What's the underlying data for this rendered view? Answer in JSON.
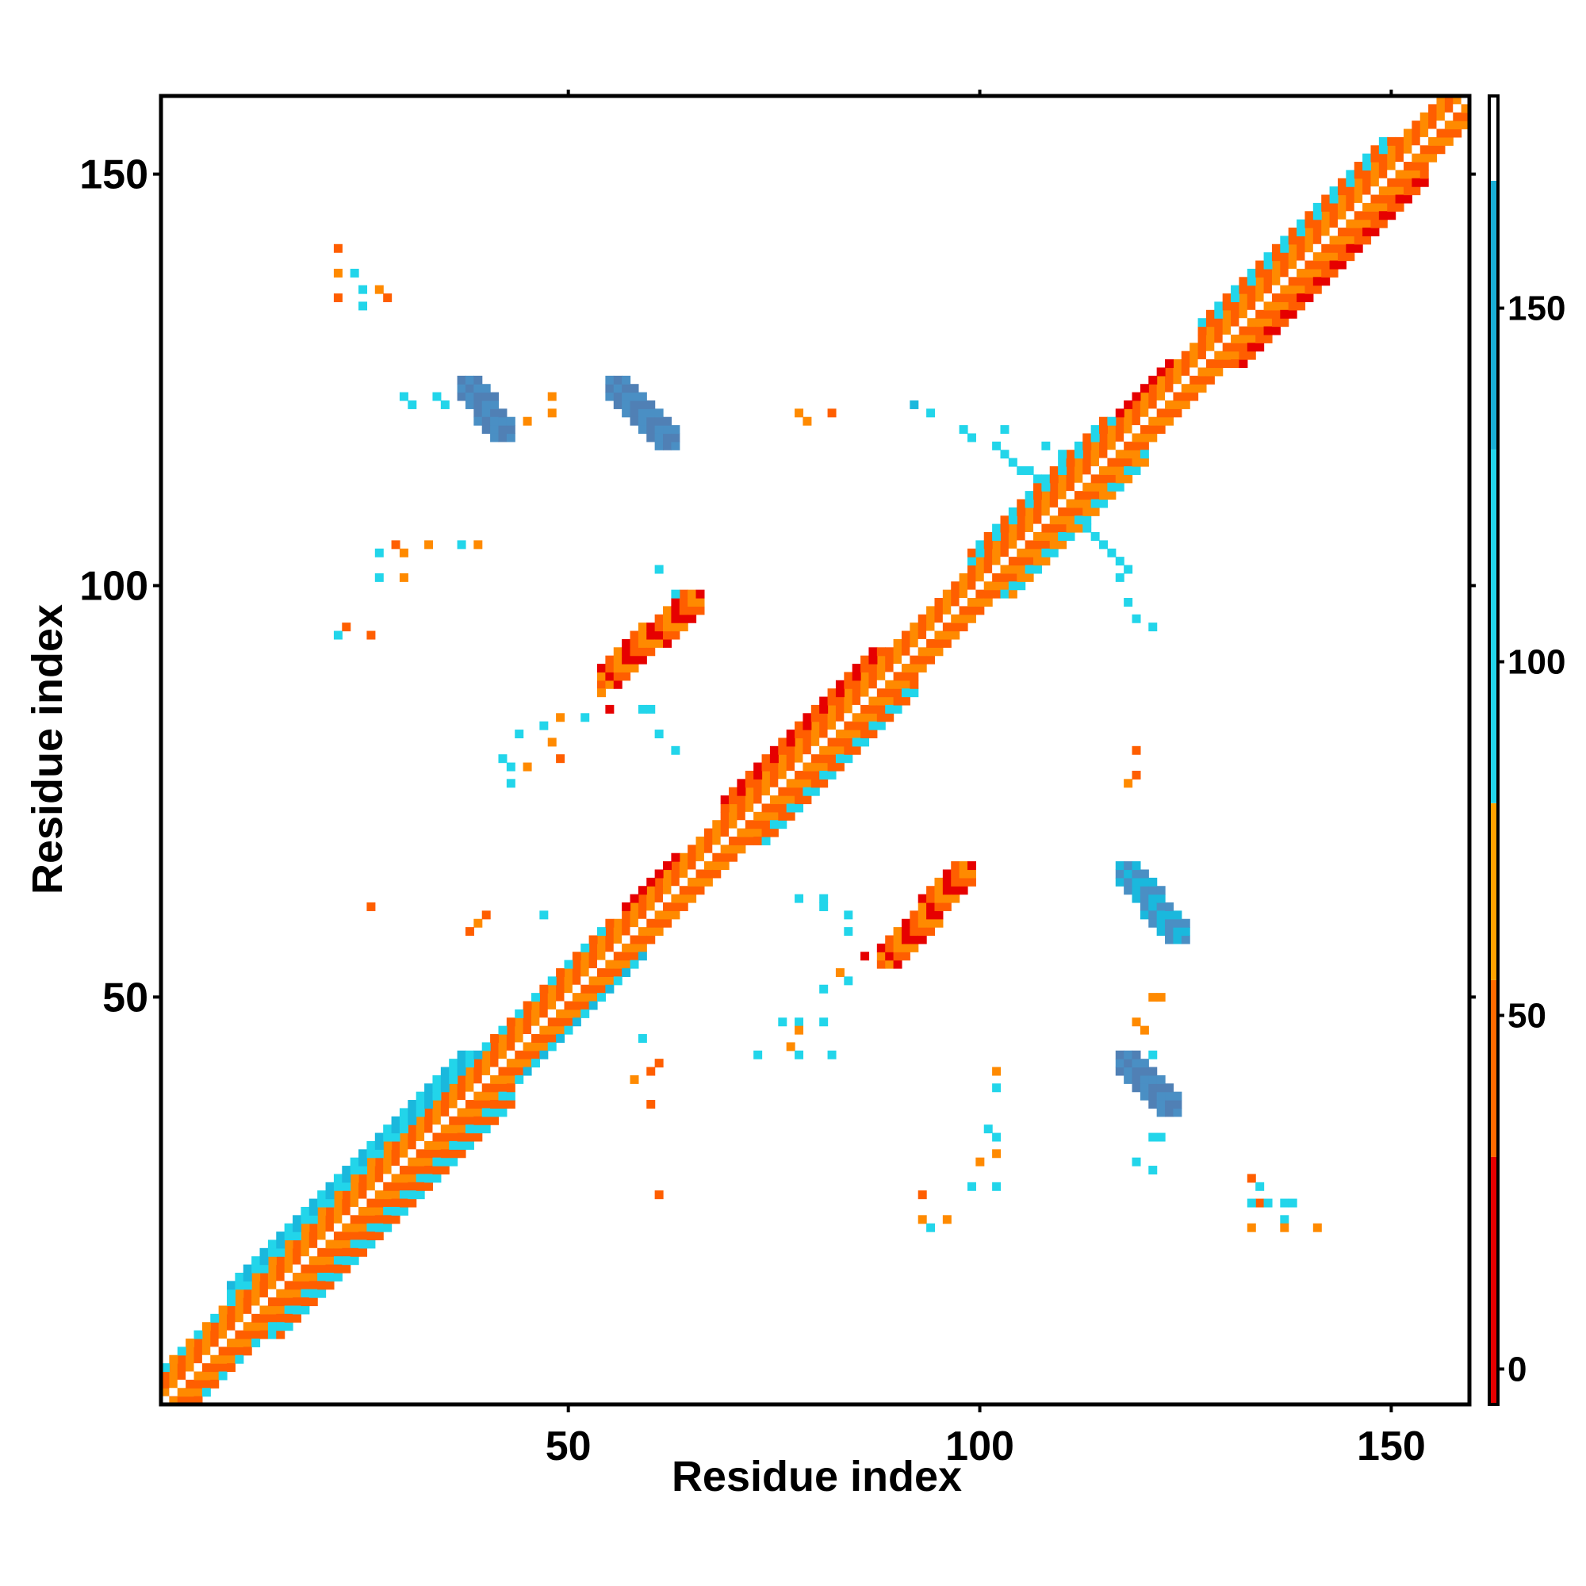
{
  "chart_data": {
    "type": "heatmap",
    "title": "",
    "xlabel": "Residue index",
    "ylabel": "Residue index",
    "xlim": [
      1,
      159
    ],
    "ylim": [
      1,
      159
    ],
    "x_ticks": [
      "50",
      "100",
      "150"
    ],
    "y_ticks": [
      "50",
      "100",
      "150"
    ],
    "grid": false,
    "colorbar": {
      "range": [
        -5,
        180
      ],
      "ticks": [
        "0",
        "50",
        "100",
        "150"
      ],
      "bands": [
        {
          "from": -5,
          "to": 30,
          "color": "#e60000"
        },
        {
          "from": 30,
          "to": 55,
          "color": "#ff6a00"
        },
        {
          "from": 55,
          "to": 80,
          "color": "#ffa200"
        },
        {
          "from": 80,
          "to": 130,
          "color": "#22d5ea"
        },
        {
          "from": 130,
          "to": 168,
          "color": "#1aaed6"
        },
        {
          "from": 168,
          "to": 180,
          "color": "#ffffff"
        }
      ],
      "palette": [
        "#e60000",
        "#ff5e00",
        "#ff8a00",
        "#ffa200",
        "#22d5ea",
        "#1ab8dd",
        "#4a8fc4",
        "#5080b5"
      ]
    },
    "diagonal": {
      "from": 1,
      "to": 159
    },
    "segments": [
      {
        "x1": 1,
        "y1": 1,
        "x2": 159,
        "y2": 159,
        "w": 2,
        "c": [
          2,
          1
        ]
      },
      {
        "x1": 1,
        "y1": 3,
        "x2": 30,
        "y2": 32,
        "w": 1,
        "c": [
          4,
          2
        ]
      },
      {
        "x1": 3,
        "y1": 1,
        "x2": 32,
        "y2": 30,
        "w": 1,
        "c": [
          1,
          4
        ]
      },
      {
        "x1": 10,
        "y1": 14,
        "x2": 38,
        "y2": 42,
        "w": 1,
        "c": [
          4,
          5
        ]
      },
      {
        "x1": 14,
        "y1": 10,
        "x2": 42,
        "y2": 38,
        "w": 1,
        "c": [
          4,
          1
        ]
      },
      {
        "x1": 40,
        "y1": 42,
        "x2": 56,
        "y2": 58,
        "w": 1,
        "c": [
          4,
          1
        ]
      },
      {
        "x1": 42,
        "y1": 40,
        "x2": 58,
        "y2": 56,
        "w": 1,
        "c": [
          4,
          5
        ]
      },
      {
        "x1": 58,
        "y1": 60,
        "x2": 64,
        "y2": 66,
        "w": 1,
        "c": [
          0,
          0
        ]
      },
      {
        "x1": 70,
        "y1": 73,
        "x2": 88,
        "y2": 91,
        "w": 1,
        "c": [
          1,
          0
        ]
      },
      {
        "x1": 73,
        "y1": 70,
        "x2": 91,
        "y2": 88,
        "w": 1,
        "c": [
          1,
          4
        ]
      },
      {
        "x1": 100,
        "y1": 103,
        "x2": 116,
        "y2": 119,
        "w": 1,
        "c": [
          4,
          1
        ]
      },
      {
        "x1": 103,
        "y1": 100,
        "x2": 119,
        "y2": 116,
        "w": 1,
        "c": [
          4,
          2
        ]
      },
      {
        "x1": 128,
        "y1": 131,
        "x2": 150,
        "y2": 153,
        "w": 1,
        "c": [
          1,
          4
        ]
      },
      {
        "x1": 131,
        "y1": 128,
        "x2": 153,
        "y2": 150,
        "w": 1,
        "c": [
          1,
          0
        ]
      },
      {
        "x1": 118,
        "y1": 120,
        "x2": 124,
        "y2": 126,
        "w": 1,
        "c": [
          0,
          0
        ]
      },
      {
        "x1": 88,
        "y1": 90,
        "x2": 94,
        "y2": 96,
        "w": 0,
        "c": [
          0,
          1
        ]
      },
      {
        "x1": 89,
        "y1": 55,
        "x2": 98,
        "y2": 65,
        "w": 1,
        "c": [
          0,
          1,
          2
        ]
      },
      {
        "x1": 55,
        "y1": 89,
        "x2": 65,
        "y2": 98,
        "w": 1,
        "c": [
          0,
          1,
          2
        ]
      },
      {
        "x1": 118,
        "y1": 65,
        "x2": 124,
        "y2": 58,
        "w": 1,
        "c": [
          6,
          5
        ]
      },
      {
        "x1": 38,
        "y1": 124,
        "x2": 42,
        "y2": 119,
        "w": 1,
        "c": [
          6,
          7
        ]
      },
      {
        "x1": 56,
        "y1": 124,
        "x2": 62,
        "y2": 118,
        "w": 1,
        "c": [
          7,
          6
        ]
      },
      {
        "x1": 118,
        "y1": 42,
        "x2": 123,
        "y2": 37,
        "w": 1,
        "c": [
          6,
          7
        ]
      },
      {
        "x1": 102,
        "y1": 117,
        "x2": 110,
        "y2": 110,
        "w": 0,
        "c": [
          4,
          4
        ]
      },
      {
        "x1": 111,
        "y1": 109,
        "x2": 118,
        "y2": 102,
        "w": 0,
        "c": [
          4,
          4
        ]
      }
    ],
    "points": [
      [
        22,
        141,
        1
      ],
      [
        22,
        138,
        2
      ],
      [
        24,
        138,
        4
      ],
      [
        25,
        136,
        4
      ],
      [
        27,
        136,
        2
      ],
      [
        28,
        135,
        1
      ],
      [
        22,
        135,
        1
      ],
      [
        25,
        134,
        4
      ],
      [
        30,
        123,
        4
      ],
      [
        31,
        122,
        4
      ],
      [
        34,
        123,
        4
      ],
      [
        35,
        122,
        4
      ],
      [
        42,
        120,
        1
      ],
      [
        45,
        120,
        2
      ],
      [
        48,
        123,
        2
      ],
      [
        48,
        121,
        2
      ],
      [
        27,
        104,
        4
      ],
      [
        29,
        105,
        1
      ],
      [
        30,
        104,
        2
      ],
      [
        33,
        105,
        2
      ],
      [
        37,
        105,
        4
      ],
      [
        39,
        105,
        2
      ],
      [
        27,
        101,
        4
      ],
      [
        30,
        101,
        2
      ],
      [
        22,
        94,
        4
      ],
      [
        23,
        95,
        1
      ],
      [
        26,
        94,
        1
      ],
      [
        61,
        102,
        4
      ],
      [
        63,
        99,
        4
      ],
      [
        65,
        98,
        2
      ],
      [
        54,
        89,
        1
      ],
      [
        54,
        87,
        2
      ],
      [
        59,
        85,
        4
      ],
      [
        60,
        85,
        4
      ],
      [
        55,
        85,
        0
      ],
      [
        52,
        84,
        4
      ],
      [
        49,
        84,
        2
      ],
      [
        47,
        83,
        4
      ],
      [
        44,
        82,
        4
      ],
      [
        48,
        81,
        2
      ],
      [
        61,
        82,
        4
      ],
      [
        42,
        79,
        4
      ],
      [
        43,
        78,
        4
      ],
      [
        45,
        78,
        2
      ],
      [
        49,
        79,
        1
      ],
      [
        63,
        80,
        4
      ],
      [
        43,
        76,
        4
      ],
      [
        26,
        61,
        1
      ],
      [
        40,
        60,
        1
      ],
      [
        39,
        59,
        2
      ],
      [
        38,
        58,
        1
      ],
      [
        47,
        60,
        4
      ],
      [
        78,
        121,
        2
      ],
      [
        79,
        120,
        2
      ],
      [
        82,
        121,
        1
      ],
      [
        92,
        122,
        5
      ],
      [
        94,
        121,
        4
      ],
      [
        98,
        119,
        4
      ],
      [
        99,
        118,
        4
      ],
      [
        103,
        119,
        4
      ],
      [
        102,
        117,
        4
      ],
      [
        108,
        117,
        4
      ],
      [
        110,
        116,
        4
      ],
      [
        115,
        105,
        4
      ],
      [
        116,
        104,
        4
      ],
      [
        117,
        101,
        4
      ],
      [
        118,
        98,
        4
      ],
      [
        119,
        96,
        4
      ],
      [
        121,
        95,
        4
      ],
      [
        119,
        80,
        1
      ],
      [
        119,
        77,
        1
      ],
      [
        118,
        76,
        2
      ],
      [
        78,
        62,
        4
      ],
      [
        81,
        62,
        4
      ],
      [
        81,
        61,
        4
      ],
      [
        84,
        60,
        4
      ],
      [
        84,
        58,
        4
      ],
      [
        86,
        55,
        0
      ],
      [
        88,
        55,
        2
      ],
      [
        90,
        55,
        1
      ],
      [
        83,
        53,
        2
      ],
      [
        84,
        52,
        4
      ],
      [
        81,
        51,
        4
      ],
      [
        76,
        47,
        4
      ],
      [
        78,
        47,
        4
      ],
      [
        81,
        47,
        4
      ],
      [
        77,
        44,
        2
      ],
      [
        73,
        43,
        4
      ],
      [
        78,
        43,
        4
      ],
      [
        82,
        43,
        4
      ],
      [
        78,
        46,
        2
      ],
      [
        59,
        45,
        4
      ],
      [
        61,
        42,
        1
      ],
      [
        60,
        41,
        1
      ],
      [
        58,
        40,
        2
      ],
      [
        60,
        37,
        1
      ],
      [
        102,
        41,
        2
      ],
      [
        102,
        39,
        4
      ],
      [
        101,
        34,
        4
      ],
      [
        102,
        33,
        4
      ],
      [
        102,
        31,
        2
      ],
      [
        100,
        30,
        2
      ],
      [
        99,
        27,
        4
      ],
      [
        102,
        27,
        4
      ],
      [
        121,
        50,
        2
      ],
      [
        122,
        50,
        2
      ],
      [
        119,
        47,
        2
      ],
      [
        120,
        46,
        2
      ],
      [
        119,
        43,
        1
      ],
      [
        121,
        43,
        4
      ],
      [
        121,
        33,
        4
      ],
      [
        122,
        33,
        4
      ],
      [
        119,
        30,
        4
      ],
      [
        121,
        29,
        4
      ],
      [
        93,
        26,
        1
      ],
      [
        93,
        23,
        2
      ],
      [
        94,
        22,
        4
      ],
      [
        96,
        23,
        2
      ],
      [
        133,
        28,
        1
      ],
      [
        134,
        27,
        4
      ],
      [
        134,
        25,
        1
      ],
      [
        133,
        25,
        4
      ],
      [
        135,
        25,
        4
      ],
      [
        137,
        25,
        4
      ],
      [
        138,
        25,
        4
      ],
      [
        137,
        23,
        4
      ],
      [
        133,
        22,
        2
      ],
      [
        137,
        22,
        2
      ],
      [
        141,
        22,
        2
      ],
      [
        61,
        26,
        1
      ]
    ]
  }
}
